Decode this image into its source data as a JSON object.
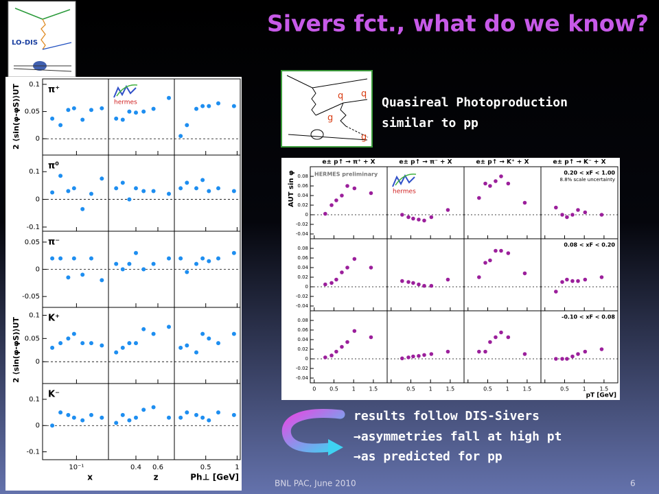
{
  "title": "Sivers fct., what do we know?",
  "lo_dis_diagram": {
    "label": "LO-DIS"
  },
  "photoproduction_diagram": {
    "labels": [
      "q",
      "q",
      "g",
      "g"
    ]
  },
  "photoproduction_text": [
    "Quasireal Photoproduction",
    "similar to pp"
  ],
  "bullets": [
    "results follow DIS-Sivers",
    "→asymmetries fall at high pt",
    "→as predicted for pp"
  ],
  "footer": {
    "text": "BNL PAC, June 2010",
    "page": "6"
  },
  "left_plot": {
    "type": "scatter",
    "color": "#1e8ef0",
    "y_label": "2 ⟨sin(φ-φS)⟩UT",
    "logo_text": "hermes",
    "columns": [
      {
        "label": "x",
        "log": true,
        "xlim": [
          0.023,
          0.4
        ],
        "xticks": [
          {
            "value": 0.1,
            "label": "10⁻¹"
          }
        ],
        "x": [
          0.035,
          0.05,
          0.07,
          0.09,
          0.13,
          0.19,
          0.3
        ]
      },
      {
        "label": "z",
        "log": false,
        "xlim": [
          0.15,
          0.75
        ],
        "xticks": [
          0.4,
          0.6
        ],
        "x": [
          0.22,
          0.28,
          0.34,
          0.4,
          0.47,
          0.56,
          0.7
        ]
      },
      {
        "label": "Ph⊥ [GeV]",
        "log": false,
        "xlim": [
          0,
          1.05
        ],
        "xticks": [
          0.5,
          1
        ],
        "x": [
          0.1,
          0.2,
          0.35,
          0.45,
          0.55,
          0.7,
          0.95
        ]
      }
    ],
    "rows": [
      {
        "label": "π⁺",
        "ylim": [
          -0.03,
          0.11
        ],
        "yticks": [
          0,
          0.05,
          0.1
        ],
        "values": [
          [
            0.037,
            0.025,
            0.053,
            0.056,
            0.035,
            0.053,
            0.056
          ],
          [
            0.037,
            0.035,
            0.05,
            0.048,
            0.05,
            0.055,
            0.075
          ],
          [
            0.005,
            0.025,
            0.055,
            0.06,
            0.06,
            0.065,
            0.06
          ]
        ]
      },
      {
        "label": "π⁰",
        "ylim": [
          -0.115,
          0.16
        ],
        "yticks": [
          -0.1,
          0,
          0.1
        ],
        "values": [
          [
            0.025,
            0.085,
            0.03,
            0.04,
            -0.035,
            0.02,
            0.075
          ],
          [
            0.04,
            0.06,
            0,
            0.04,
            0.03,
            0.03,
            0.02
          ],
          [
            0.04,
            0.06,
            0.04,
            0.07,
            0.03,
            0.04,
            0.03
          ]
        ]
      },
      {
        "label": "π⁻",
        "ylim": [
          -0.07,
          0.07
        ],
        "yticks": [
          -0.05,
          0,
          0.05
        ],
        "values": [
          [
            0.02,
            0.02,
            -0.015,
            0.02,
            -0.01,
            0.02,
            -0.02
          ],
          [
            0.01,
            0,
            0.01,
            0.03,
            0,
            0.01,
            0.02
          ],
          [
            0.02,
            -0.005,
            0.01,
            0.02,
            0.015,
            0.02,
            0.03
          ]
        ]
      },
      {
        "label": "K⁺",
        "ylim": [
          -0.047,
          0.117
        ],
        "yticks": [
          0,
          0.05,
          0.1
        ],
        "values": [
          [
            0.03,
            0.04,
            0.05,
            0.06,
            0.04,
            0.04,
            0.035
          ],
          [
            0.02,
            0.03,
            0.04,
            0.04,
            0.07,
            0.06,
            0.075
          ],
          [
            0.03,
            0.035,
            0.02,
            0.06,
            0.05,
            0.04,
            0.06
          ]
        ]
      },
      {
        "label": "K⁻",
        "ylim": [
          -0.13,
          0.16
        ],
        "yticks": [
          -0.1,
          0,
          0.1
        ],
        "values": [
          [
            0,
            0.05,
            0.04,
            0.03,
            0.02,
            0.04,
            0.03
          ],
          [
            0.01,
            0.04,
            0.02,
            0.03,
            0.06,
            0.07,
            0.03
          ],
          [
            0.03,
            0.05,
            0.04,
            0.03,
            0.02,
            0.05,
            0.04
          ]
        ]
      }
    ]
  },
  "right_plot": {
    "type": "scatter",
    "color": "#9b1f9b",
    "y_label": "AUT sin φ",
    "x_label": "pT [GeV]",
    "preliminary": "HERMES preliminary",
    "logo_text": "hermes",
    "scale_note": "8.8% scale uncertainty",
    "columns": [
      "e± p↑ → π⁺ + X",
      "e± p↑ → π⁻ + X",
      "e± p↑ → K⁺ + X",
      "e± p↑ → K⁻ + X"
    ],
    "xlim": [
      -0.1,
      1.85
    ],
    "xticks": [
      0,
      0.5,
      1,
      1.5
    ],
    "x": [
      0.28,
      0.44,
      0.56,
      0.7,
      0.84,
      1.02,
      1.44
    ],
    "ylim": [
      -0.05,
      0.1
    ],
    "yticks": [
      -0.04,
      -0.02,
      0,
      0.02,
      0.04,
      0.06,
      0.08
    ],
    "rows": [
      {
        "label": "0.20 < xF < 1.00",
        "values": [
          [
            0.002,
            0.02,
            0.03,
            0.04,
            0.06,
            0.055,
            0.045
          ],
          [
            0,
            -0.005,
            -0.008,
            -0.01,
            -0.012,
            -0.005,
            0.01
          ],
          [
            0.035,
            0.065,
            0.06,
            0.07,
            0.08,
            0.065,
            0.025
          ],
          [
            0.015,
            0,
            -0.005,
            0,
            0.01,
            0.005,
            0
          ]
        ]
      },
      {
        "label": "0.08 < xF < 0.20",
        "values": [
          [
            0.005,
            0.008,
            0.015,
            0.03,
            0.04,
            0.058,
            0.04
          ],
          [
            0.012,
            0.01,
            0.008,
            0.005,
            0.002,
            0.002,
            0.015
          ],
          [
            0.02,
            0.05,
            0.055,
            0.075,
            0.075,
            0.07,
            0.028
          ],
          [
            -0.01,
            0.01,
            0.015,
            0.012,
            0.012,
            0.015,
            0.02
          ]
        ]
      },
      {
        "label": "-0.10 < xF < 0.08",
        "values": [
          [
            0.003,
            0.007,
            0.015,
            0.025,
            0.035,
            0.058,
            0.045
          ],
          [
            0.001,
            0.003,
            0.005,
            0.006,
            0.008,
            0.01,
            0.015
          ],
          [
            0.015,
            0.015,
            0.035,
            0.045,
            0.055,
            0.045,
            0.01
          ],
          [
            0,
            0,
            0,
            0.005,
            0.01,
            0.015,
            0.02
          ]
        ]
      }
    ]
  }
}
